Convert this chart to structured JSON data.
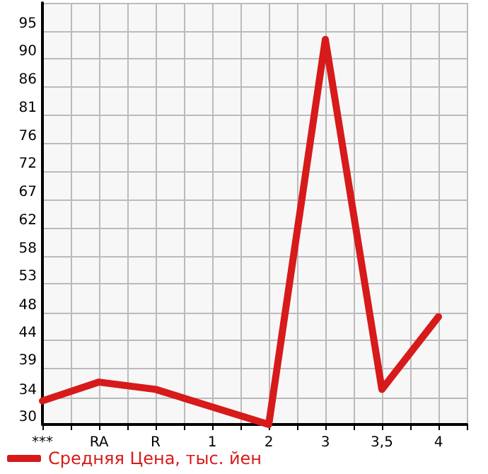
{
  "chart_data": {
    "type": "line",
    "categories": [
      "***",
      "RA",
      "R",
      "1",
      "2",
      "3",
      "3,5",
      "4"
    ],
    "series": [
      {
        "name": "Средняя Цена, тыс. йен",
        "color": "#d71a1a",
        "values": [
          33.9,
          37,
          35.8,
          32.9,
          30,
          93.6,
          35.8,
          47.8
        ]
      }
    ],
    "ylim": [
      30,
      99.64
    ],
    "yticks": [
      30,
      {
        "value": 34.45,
        "label": "34"
      },
      {
        "value": 39.29,
        "label": "39"
      },
      {
        "value": 43.93,
        "label": "44"
      },
      {
        "value": 48.45,
        "label": "48"
      },
      {
        "value": 53.21,
        "label": "53"
      },
      {
        "value": 57.86,
        "label": "58"
      },
      {
        "value": 62.5,
        "label": "62"
      },
      {
        "value": 67.14,
        "label": "67"
      },
      {
        "value": 71.79,
        "label": "72"
      },
      {
        "value": 76.43,
        "label": "76"
      },
      {
        "value": 81.07,
        "label": "81"
      },
      {
        "value": 85.71,
        "label": "86"
      },
      {
        "value": 90.36,
        "label": "90"
      },
      95,
      {
        "value": 99.64,
        "label": null
      }
    ],
    "grid": true,
    "legend": "bottom left",
    "marker": "none",
    "line_style": "solid"
  }
}
